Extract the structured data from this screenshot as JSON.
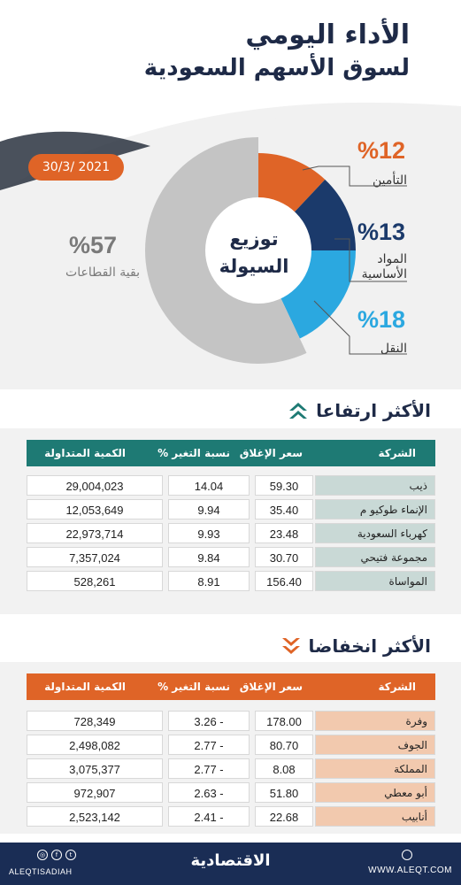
{
  "header": {
    "title_line1": "الأداء اليومي",
    "title_line2": "لسوق الأسهم السعودية",
    "date": "30/3/ 2021"
  },
  "liquidity": {
    "center_line1": "توزيع",
    "center_line2": "السيولة",
    "segments": [
      {
        "pct": "%12",
        "label": "التأمين",
        "value": 12,
        "color": "#df6427"
      },
      {
        "pct": "%13",
        "label_line1": "المواد",
        "label_line2": "الأساسية",
        "value": 13,
        "color": "#1b3a6b"
      },
      {
        "pct": "%18",
        "label": "النقل",
        "value": 18,
        "color": "#2ba8e0"
      },
      {
        "pct": "%57",
        "label": "بقية القطاعات",
        "value": 57,
        "color": "#c4c4c4"
      }
    ]
  },
  "gainers": {
    "title": "الأكثر ارتفاعا",
    "headers": {
      "company": "الشركة",
      "close": "سعر الإغلاق",
      "change": "نسبة التغير %",
      "volume": "الكمية المتداولة"
    },
    "rows": [
      {
        "company": "ذيب",
        "close": "59.30",
        "change": "14.04",
        "volume": "29,004,023"
      },
      {
        "company": "الإنماء طوكيو م",
        "close": "35.40",
        "change": "9.94",
        "volume": "12,053,649"
      },
      {
        "company": "كهرباء السعودية",
        "close": "23.48",
        "change": "9.93",
        "volume": "22,973,714"
      },
      {
        "company": "مجموعة فتيحي",
        "close": "30.70",
        "change": "9.84",
        "volume": "7,357,024"
      },
      {
        "company": "المواساة",
        "close": "156.40",
        "change": "8.91",
        "volume": "528,261"
      }
    ]
  },
  "losers": {
    "title": "الأكثر انخفاضا",
    "headers": {
      "company": "الشركة",
      "close": "سعر الإغلاق",
      "change": "نسبة التغير %",
      "volume": "الكمية المتداولة"
    },
    "rows": [
      {
        "company": "وفرة",
        "close": "178.00",
        "change": "3.26 -",
        "volume": "728,349"
      },
      {
        "company": "الجوف",
        "close": "80.70",
        "change": "2.77 -",
        "volume": "2,498,082"
      },
      {
        "company": "المملكة",
        "close": "8.08",
        "change": "2.77 -",
        "volume": "3,075,377"
      },
      {
        "company": "أبو معطي",
        "close": "51.80",
        "change": "2.63 -",
        "volume": "972,907"
      },
      {
        "company": "أنابيب",
        "close": "22.68",
        "change": "2.41 -",
        "volume": "2,523,142"
      }
    ]
  },
  "footer": {
    "handle": "ALEQTISADIAH",
    "logo": "الاقتصادية",
    "site": "WWW.ALEQT.COM"
  },
  "colors": {
    "navy": "#1e2a47",
    "orange": "#df6427",
    "teal": "#1e7a74",
    "gainer_name_bg": "#c9d9d6",
    "loser_name_bg": "#f2c9ae"
  }
}
